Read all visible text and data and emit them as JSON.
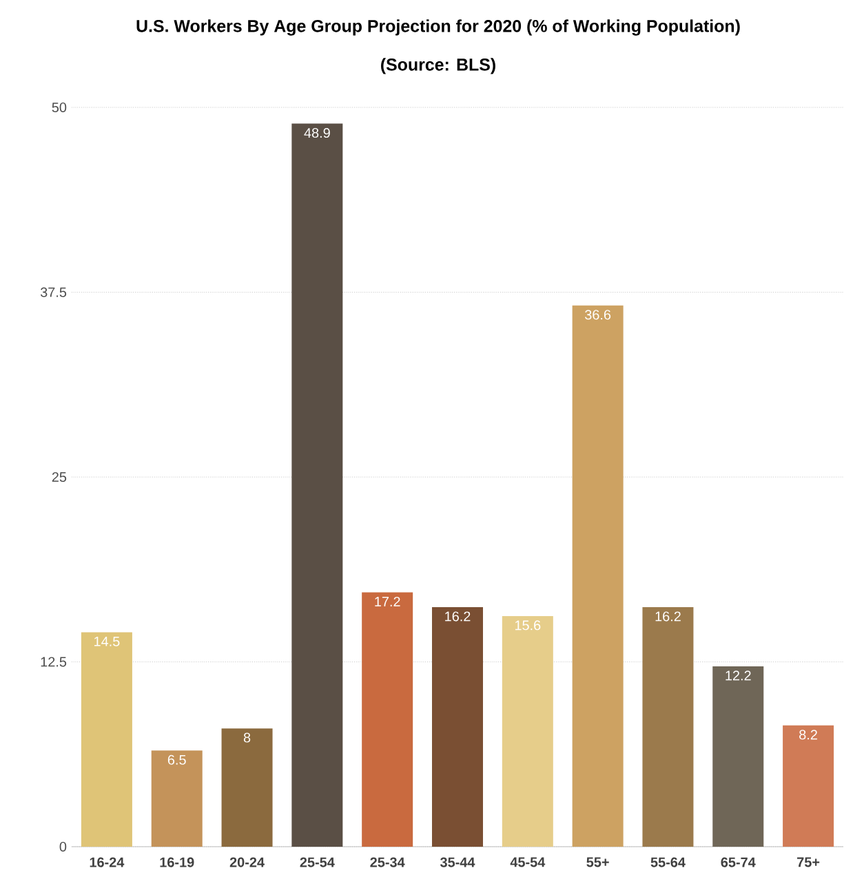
{
  "chart_data": {
    "type": "bar",
    "title": "U.S. Workers By Age Group Projection for 2020 (% of Working Population)",
    "subtitle": "(Source: BLS)",
    "categories": [
      "16-24",
      "16-19",
      "20-24",
      "25-54",
      "25-34",
      "35-44",
      "45-54",
      "55+",
      "55-64",
      "65-74",
      "75+"
    ],
    "values": [
      14.5,
      6.5,
      8,
      48.9,
      17.2,
      16.2,
      15.6,
      36.6,
      16.2,
      12.2,
      8.2
    ],
    "colors": [
      "#dfc477",
      "#c4935a",
      "#8b6a3e",
      "#5a4f45",
      "#c96a3f",
      "#7a4f33",
      "#e6cd8a",
      "#cda262",
      "#9b7a4c",
      "#6f6657",
      "#d07b56"
    ],
    "ylim": [
      0,
      50
    ],
    "yticks": [
      0,
      12.5,
      25,
      37.5,
      50
    ],
    "grid": "y",
    "data_labels": true
  }
}
